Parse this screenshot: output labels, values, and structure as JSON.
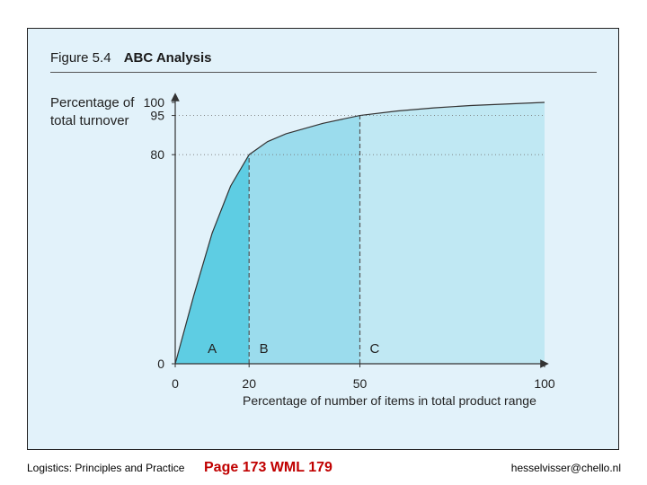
{
  "figure": {
    "number": "Figure 5.4",
    "title": "ABC Analysis"
  },
  "chart_data": {
    "type": "area",
    "title": "ABC Analysis",
    "ylabel": "Percentage of total turnover",
    "xlabel": "Percentage of number of items in total product range",
    "xlim": [
      0,
      100
    ],
    "ylim": [
      0,
      100
    ],
    "x_ticks": [
      0,
      20,
      50,
      100
    ],
    "y_ticks": [
      0,
      80,
      95,
      100
    ],
    "reference_lines": [
      {
        "axis": "y",
        "value": 80
      },
      {
        "axis": "y",
        "value": 95
      },
      {
        "axis": "x",
        "value": 20
      },
      {
        "axis": "x",
        "value": 50
      }
    ],
    "curve": {
      "x": [
        0,
        5,
        10,
        15,
        20,
        25,
        30,
        40,
        50,
        60,
        70,
        80,
        90,
        100
      ],
      "y": [
        0,
        26,
        50,
        68,
        80,
        85,
        88,
        92,
        95,
        96.7,
        97.9,
        98.8,
        99.4,
        100
      ]
    },
    "regions": [
      {
        "label": "A",
        "from": 0,
        "to": 20,
        "label_x": 10,
        "color": "#5ecde3"
      },
      {
        "label": "B",
        "from": 20,
        "to": 50,
        "label_x": 24,
        "color": "#9bdced"
      },
      {
        "label": "C",
        "from": 50,
        "to": 100,
        "label_x": 54,
        "color": "#c0e8f3"
      }
    ],
    "colors": {
      "axis": "#333333",
      "gridline": "#777777",
      "divider": "#555555"
    }
  },
  "footer": {
    "left": "Logistics: Principles and Practice",
    "middle": "Page 173 WML 179",
    "right": "hesselvisser@chello.nl"
  }
}
